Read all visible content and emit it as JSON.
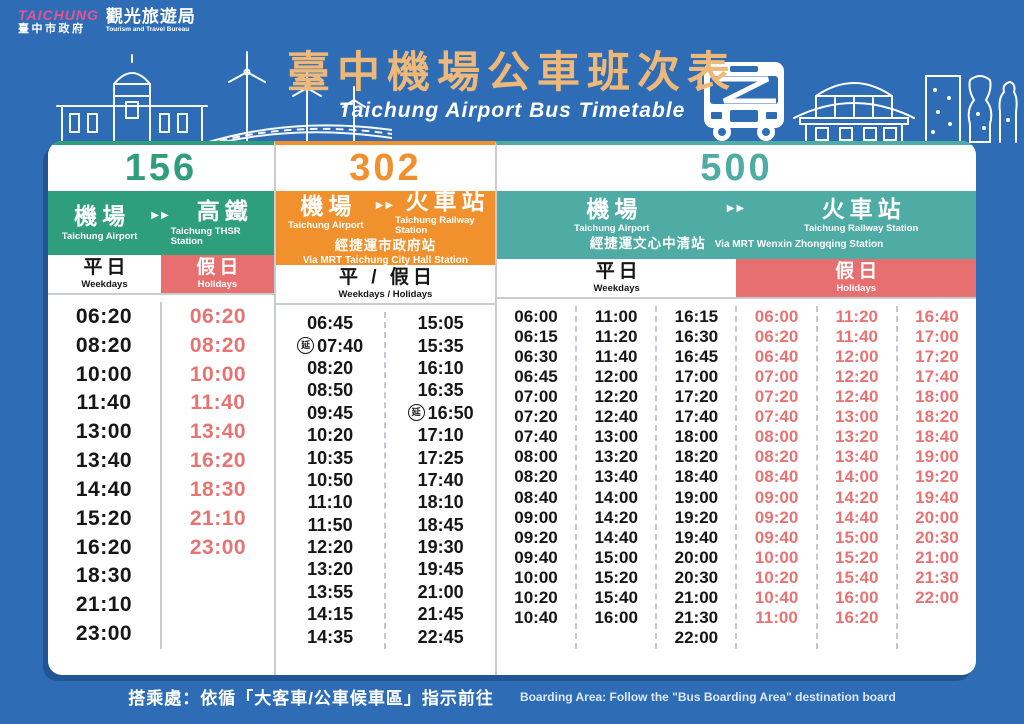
{
  "logo": {
    "brand_en": "TAICHUNG",
    "brand_zh": "臺中市政府",
    "bureau_zh": "觀光旅遊局",
    "bureau_en": "Tourism and Travel Bureau"
  },
  "header": {
    "title_zh": "臺中機場公車班次表",
    "title_en": "Taichung Airport Bus Timetable"
  },
  "footer": {
    "zh": "搭乘處：依循「大客車/公車候車區」指示前往",
    "en": "Boarding Area: Follow the \"Bus Boarding Area\" destination board"
  },
  "colors": {
    "background": "#2E6DB6",
    "title_gold": "#EDB878",
    "route_156_green": "#2F9E7B",
    "route_302_orange": "#F0912D",
    "route_500_teal": "#4FACA4",
    "holiday_red": "#E86F6F",
    "holiday_time_red": "#E87373",
    "weekday_time_black": "#161616"
  },
  "decor_icons": [
    "train-station-icon",
    "wind-turbine-icon",
    "road-icon",
    "bus-icon",
    "pavilion-icon",
    "vase-icon"
  ],
  "arrow_glyph": "▶▶",
  "routes": [
    {
      "number": "156",
      "color": "#2F9E7B",
      "origin_zh": "機場",
      "origin_en": "Taichung Airport",
      "dest_zh": "高鐵",
      "dest_en": "Taichung THSR Station",
      "via_zh": "",
      "via_en": "",
      "sections": [
        {
          "label_zh": "平日",
          "label_en": "Weekdays",
          "style": "weekday",
          "columns": [
            [
              "06:20",
              "08:20",
              "10:00",
              "11:40",
              "13:00",
              "13:40",
              "14:40",
              "15:20",
              "16:20",
              "18:30",
              "21:10",
              "23:00"
            ]
          ]
        },
        {
          "label_zh": "假日",
          "label_en": "Holidays",
          "style": "holiday",
          "columns": [
            [
              "06:20",
              "08:20",
              "10:00",
              "11:40",
              "13:40",
              "16:20",
              "18:30",
              "21:10",
              "23:00"
            ]
          ]
        }
      ]
    },
    {
      "number": "302",
      "color": "#F0912D",
      "origin_zh": "機場",
      "origin_en": "Taichung Airport",
      "dest_zh": "火車站",
      "dest_en": "Taichung Railway Station",
      "via_zh": "經捷運市政府站",
      "via_en": "Via MRT Taichung City Hall Station",
      "sections": [
        {
          "label_zh": "平 / 假日",
          "label_en": "Weekdays / Holidays",
          "style": "weekday",
          "columns": [
            [
              "06:45",
              {
                "t": "07:40",
                "badge": "延"
              },
              "08:20",
              "08:50",
              "09:45",
              "10:20",
              "10:35",
              "10:50",
              "11:10",
              "11:50",
              "12:20",
              "13:20",
              "13:55",
              "14:15",
              "14:35"
            ],
            [
              "15:05",
              "15:35",
              "16:10",
              "16:35",
              {
                "t": "16:50",
                "badge": "延"
              },
              "17:10",
              "17:25",
              "17:40",
              "18:10",
              "18:45",
              "19:30",
              "19:45",
              "21:00",
              "21:45",
              "22:45"
            ]
          ]
        }
      ]
    },
    {
      "number": "500",
      "color": "#4FACA4",
      "origin_zh": "機場",
      "origin_en": "Taichung Airport",
      "dest_zh": "火車站",
      "dest_en": "Taichung Railway Station",
      "via_zh": "經捷運文心中清站",
      "via_en": "Via MRT Wenxin Zhongqing Station",
      "sections": [
        {
          "label_zh": "平日",
          "label_en": "Weekdays",
          "style": "weekday",
          "columns": [
            [
              "06:00",
              "06:15",
              "06:30",
              "06:45",
              "07:00",
              "07:20",
              "07:40",
              "08:00",
              "08:20",
              "08:40",
              "09:00",
              "09:20",
              "09:40",
              "10:00",
              "10:20",
              "10:40"
            ],
            [
              "11:00",
              "11:20",
              "11:40",
              "12:00",
              "12:20",
              "12:40",
              "13:00",
              "13:20",
              "13:40",
              "14:00",
              "14:20",
              "14:40",
              "15:00",
              "15:20",
              "15:40",
              "16:00"
            ],
            [
              "16:15",
              "16:30",
              "16:45",
              "17:00",
              "17:20",
              "17:40",
              "18:00",
              "18:20",
              "18:40",
              "19:00",
              "19:20",
              "19:40",
              "20:00",
              "20:30",
              "21:00",
              "21:30",
              "22:00"
            ]
          ]
        },
        {
          "label_zh": "假日",
          "label_en": "Holidays",
          "style": "holiday",
          "columns": [
            [
              "06:00",
              "06:20",
              "06:40",
              "07:00",
              "07:20",
              "07:40",
              "08:00",
              "08:20",
              "08:40",
              "09:00",
              "09:20",
              "09:40",
              "10:00",
              "10:20",
              "10:40",
              "11:00"
            ],
            [
              "11:20",
              "11:40",
              "12:00",
              "12:20",
              "12:40",
              "13:00",
              "13:20",
              "13:40",
              "14:00",
              "14:20",
              "14:40",
              "15:00",
              "15:20",
              "15:40",
              "16:00",
              "16:20"
            ],
            [
              "16:40",
              "17:00",
              "17:20",
              "17:40",
              "18:00",
              "18:20",
              "18:40",
              "19:00",
              "19:20",
              "19:40",
              "20:00",
              "20:30",
              "21:00",
              "21:30",
              "22:00"
            ]
          ]
        }
      ]
    }
  ]
}
